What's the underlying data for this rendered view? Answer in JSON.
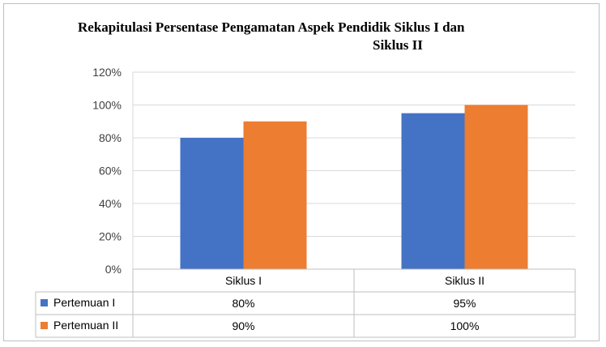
{
  "chart_data": {
    "type": "bar",
    "title_line1": "Rekapitulasi Persentase Pengamatan Aspek Pendidik Siklus I dan",
    "title_line2": "Siklus II",
    "categories": [
      "Siklus I",
      "Siklus II"
    ],
    "series": [
      {
        "name": "Pertemuan I",
        "values": [
          80,
          95
        ],
        "labels": [
          "80%",
          "95%"
        ],
        "color": "#4472c4"
      },
      {
        "name": "Pertemuan II",
        "values": [
          90,
          100
        ],
        "labels": [
          "90%",
          "100%"
        ],
        "color": "#ed7d31"
      }
    ],
    "ylim": [
      0,
      120
    ],
    "yticks": [
      "0%",
      "20%",
      "40%",
      "60%",
      "80%",
      "100%",
      "120%"
    ],
    "grid": true,
    "legend": "data-table"
  }
}
